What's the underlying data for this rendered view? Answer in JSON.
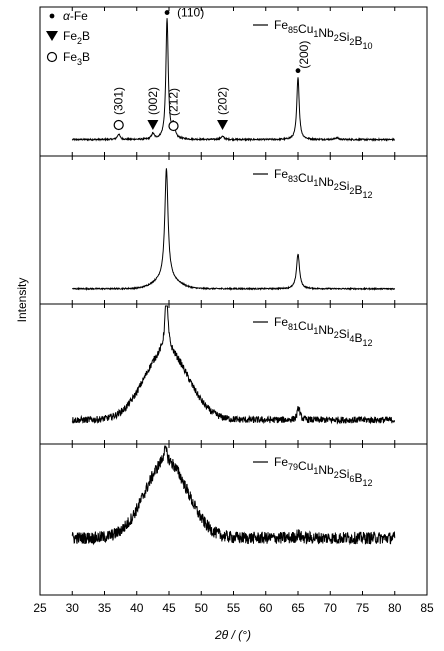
{
  "chart_data": {
    "type": "line",
    "xlabel": "2θ / (°)",
    "ylabel": "Intensity",
    "xlim": [
      25,
      85
    ],
    "x_ticks": [
      25,
      30,
      35,
      40,
      45,
      50,
      55,
      60,
      65,
      70,
      75,
      80,
      85
    ],
    "grid": false,
    "legend_position": "top-right",
    "marker_legend": [
      {
        "symbol": "dot",
        "label": "α-Fe"
      },
      {
        "symbol": "down-triangle",
        "label": "Fe2B"
      },
      {
        "symbol": "open-circle",
        "label": "Fe3B"
      }
    ],
    "panels": [
      {
        "name": "Fe85Cu1Nb2Si2B10",
        "peaks": [
          {
            "x": 44.7,
            "height": 1.0,
            "width": 0.22,
            "phase": "α-Fe",
            "label": "(110)"
          },
          {
            "x": 65.0,
            "height": 0.52,
            "width": 0.22,
            "phase": "α-Fe",
            "label": "(200)"
          },
          {
            "x": 37.2,
            "height": 0.045,
            "width": 0.25,
            "phase": "Fe3B",
            "label": "(301)"
          },
          {
            "x": 42.5,
            "height": 0.045,
            "width": 0.25,
            "phase": "Fe2B",
            "label": "(002)"
          },
          {
            "x": 45.7,
            "height": 0.11,
            "width": 0.25,
            "phase": "Fe3B",
            "label": "(212)"
          },
          {
            "x": 53.3,
            "height": 0.025,
            "width": 0.3,
            "phase": "Fe2B",
            "label": "(202)"
          },
          {
            "x": 71.0,
            "height": 0.015,
            "width": 0.3,
            "phase": "",
            "label": ""
          }
        ],
        "amorphous_halo": {
          "height": 0.0,
          "width": 3.0
        },
        "baseline": 0.02,
        "noise": 0.006
      },
      {
        "name": "Fe83Cu1Nb2Si2B12",
        "peaks": [
          {
            "x": 44.6,
            "height": 0.92,
            "width": 0.3,
            "phase": "α-Fe",
            "label": ""
          },
          {
            "x": 65.0,
            "height": 0.29,
            "width": 0.28,
            "phase": "α-Fe",
            "label": ""
          }
        ],
        "amorphous_halo": {
          "height": 0.08,
          "width": 1.8
        },
        "baseline": 0.01,
        "noise": 0.005
      },
      {
        "name": "Fe81Cu1Nb2Si4B12",
        "peaks": [
          {
            "x": 44.6,
            "height": 0.5,
            "width": 0.28,
            "phase": "α-Fe",
            "label": ""
          },
          {
            "x": 65.1,
            "height": 0.11,
            "width": 0.25,
            "phase": "α-Fe",
            "label": ""
          }
        ],
        "amorphous_halo": {
          "height": 0.62,
          "width": 3.4
        },
        "baseline": 0.09,
        "noise": 0.03
      },
      {
        "name": "Fe79Cu1Nb2Si6B12",
        "peaks": [
          {
            "x": 44.4,
            "height": 0.12,
            "width": 0.3,
            "phase": "α-Fe",
            "label": ""
          },
          {
            "x": 65.0,
            "height": 0.03,
            "width": 0.3,
            "phase": "",
            "label": ""
          }
        ],
        "amorphous_halo": {
          "height": 0.62,
          "width": 3.3
        },
        "baseline": 0.35,
        "noise": 0.05
      }
    ]
  }
}
